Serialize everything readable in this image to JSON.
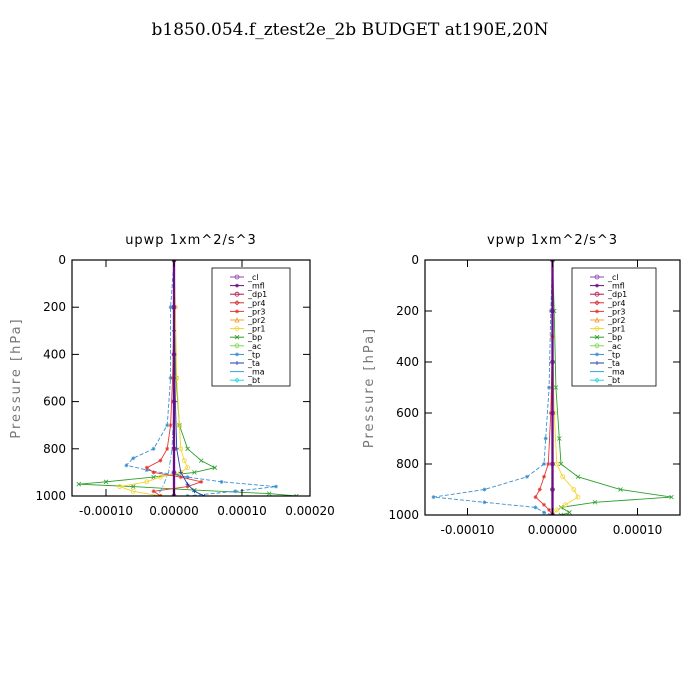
{
  "title": "b1850.054.f_ztest2e_2b  BUDGET at190E,20N",
  "legend": [
    {
      "name": "_cl",
      "color": "#8e44ad",
      "marker": "circle"
    },
    {
      "name": "_mfl",
      "color": "#6a0d83",
      "marker": "star"
    },
    {
      "name": "_dp1",
      "color": "#b0174a",
      "marker": "circle"
    },
    {
      "name": "_pr4",
      "color": "#d32f2f",
      "marker": "diamond"
    },
    {
      "name": "_pr3",
      "color": "#e53935",
      "marker": "star"
    },
    {
      "name": "_pr2",
      "color": "#f0a030",
      "marker": "triangle"
    },
    {
      "name": "_pr1",
      "color": "#f2d430",
      "marker": "circle"
    },
    {
      "name": "_bp",
      "color": "#2ca02c",
      "marker": "x"
    },
    {
      "name": "_ac",
      "color": "#7cd957",
      "marker": "circle"
    },
    {
      "name": "_tp",
      "color": "#3a8fd0",
      "marker": "star"
    },
    {
      "name": "_ta",
      "color": "#1f3fa8",
      "marker": "plus"
    },
    {
      "name": "_ma",
      "color": "#3aa0d8",
      "marker": "none"
    },
    {
      "name": "_bt",
      "color": "#28d8e0",
      "marker": "diamond"
    }
  ],
  "chart_data": [
    {
      "type": "line",
      "title": "upwp   1xm^2/s^3",
      "xlabel": "",
      "ylabel": "Pressure [hPa]",
      "xlim": [
        -0.00015,
        0.0002
      ],
      "ylim": [
        1000,
        0
      ],
      "xticks": [
        "-0.00010",
        "0.00000",
        "0.00010",
        "0.00020"
      ],
      "xtick_values": [
        -0.0001,
        0.0,
        0.0001,
        0.0002
      ],
      "yticks": [
        "0",
        "200",
        "400",
        "600",
        "800",
        "1000"
      ],
      "ytick_values": [
        0,
        200,
        400,
        600,
        800,
        1000
      ],
      "legend_position": "top-right",
      "series": [
        {
          "name": "_bp",
          "color": "#2ca02c",
          "y": [
            0,
            200,
            500,
            700,
            800,
            850,
            880,
            900,
            920,
            940,
            950,
            960,
            975,
            990,
            1000
          ],
          "x": [
            0,
            0,
            3e-06,
            8e-06,
            2e-05,
            4e-05,
            6e-05,
            3e-05,
            -3e-05,
            -0.0001,
            -0.00014,
            -6e-05,
            3e-05,
            0.00014,
            0.00018
          ]
        },
        {
          "name": "_tp",
          "color": "#3a8fd0",
          "y": [
            0,
            200,
            500,
            700,
            800,
            840,
            870,
            890,
            920,
            940,
            960,
            980,
            1000
          ],
          "x": [
            0,
            -5e-06,
            -5e-06,
            -1e-05,
            -3e-05,
            -6e-05,
            -7e-05,
            -4e-05,
            2e-05,
            7e-05,
            0.00015,
            9e-05,
            2e-05
          ]
        },
        {
          "name": "_pr1",
          "color": "#f2d430",
          "y": [
            0,
            200,
            500,
            700,
            800,
            850,
            880,
            900,
            920,
            940,
            960,
            980,
            1000
          ],
          "x": [
            0,
            2e-06,
            4e-06,
            8e-06,
            1e-05,
            1.5e-05,
            2e-05,
            1e-05,
            -2e-05,
            -4e-05,
            -8e-05,
            -6e-05,
            -2e-05
          ]
        },
        {
          "name": "_pr3",
          "color": "#e53935",
          "y": [
            0,
            200,
            500,
            700,
            800,
            850,
            880,
            900,
            920,
            940,
            960,
            980,
            1000
          ],
          "x": [
            0,
            0,
            -2e-06,
            -5e-06,
            -1e-05,
            -2e-05,
            -4e-05,
            -3e-05,
            1e-05,
            4e-05,
            2e-05,
            -3e-05,
            -2e-05
          ]
        },
        {
          "name": "_ma",
          "color": "#3aa0d8",
          "y": [
            0,
            300,
            600,
            800,
            900,
            950,
            980,
            1000
          ],
          "x": [
            0,
            0,
            0,
            -3e-06,
            -8e-06,
            -1.5e-05,
            -2e-05,
            -3e-05
          ]
        },
        {
          "name": "_ta",
          "color": "#1f3fa8",
          "y": [
            0,
            300,
            600,
            800,
            900,
            950,
            980,
            1000
          ],
          "x": [
            0,
            0,
            2e-06,
            4e-06,
            1e-05,
            2e-05,
            3e-05,
            4.5e-05
          ]
        },
        {
          "name": "_cl",
          "color": "#8e44ad",
          "y": [
            0,
            200,
            400,
            600,
            800,
            900,
            1000
          ],
          "x": [
            0,
            0,
            0,
            0,
            0,
            0,
            0
          ]
        },
        {
          "name": "_mfl",
          "color": "#6a0d83",
          "y": [
            0,
            200,
            400,
            600,
            800,
            900,
            1000
          ],
          "x": [
            0,
            0,
            0,
            0,
            0,
            0,
            0
          ]
        }
      ]
    },
    {
      "type": "line",
      "title": "vpwp   1xm^2/s^3",
      "xlabel": "",
      "ylabel": "Pressure [hPa]",
      "xlim": [
        -0.00015,
        0.00015
      ],
      "ylim": [
        1000,
        0
      ],
      "xticks": [
        "-0.00010",
        "0.00000",
        "0.00010"
      ],
      "xtick_values": [
        -0.0001,
        0.0,
        0.0001
      ],
      "yticks": [
        "0",
        "200",
        "400",
        "600",
        "800",
        "1000"
      ],
      "ytick_values": [
        0,
        200,
        400,
        600,
        800,
        1000
      ],
      "legend_position": "top-right",
      "series": [
        {
          "name": "_bp",
          "color": "#2ca02c",
          "y": [
            0,
            200,
            500,
            700,
            800,
            850,
            900,
            930,
            950,
            970,
            990,
            1000
          ],
          "x": [
            0,
            2e-06,
            4e-06,
            8e-06,
            1e-05,
            3e-05,
            8e-05,
            0.00014,
            5e-05,
            1e-05,
            2e-05,
            1e-05
          ]
        },
        {
          "name": "_tp",
          "color": "#3a8fd0",
          "y": [
            0,
            200,
            500,
            700,
            800,
            850,
            900,
            930,
            950,
            970,
            990,
            1000
          ],
          "x": [
            0,
            -2e-06,
            -4e-06,
            -8e-06,
            -1e-05,
            -3e-05,
            -8e-05,
            -0.00014,
            -8e-05,
            -2e-05,
            -1e-05,
            0
          ]
        },
        {
          "name": "_pr1",
          "color": "#f2d430",
          "y": [
            0,
            300,
            600,
            800,
            850,
            900,
            930,
            960,
            980,
            1000
          ],
          "x": [
            0,
            0,
            2e-06,
            5e-06,
            1.2e-05,
            2.5e-05,
            3e-05,
            1.5e-05,
            5e-06,
            0
          ]
        },
        {
          "name": "_pr3",
          "color": "#e53935",
          "y": [
            0,
            300,
            600,
            800,
            850,
            900,
            930,
            960,
            980,
            1000
          ],
          "x": [
            0,
            0,
            -2e-06,
            -5e-06,
            -1e-05,
            -1.5e-05,
            -2e-05,
            -1e-05,
            -4e-06,
            0
          ]
        },
        {
          "name": "_cl",
          "color": "#8e44ad",
          "y": [
            0,
            200,
            400,
            600,
            800,
            900,
            1000
          ],
          "x": [
            0,
            0,
            0,
            0,
            0,
            0,
            0
          ]
        },
        {
          "name": "_mfl",
          "color": "#6a0d83",
          "y": [
            0,
            200,
            400,
            600,
            800,
            900,
            1000
          ],
          "x": [
            0,
            0,
            0,
            0,
            0,
            0,
            0
          ]
        }
      ]
    }
  ]
}
